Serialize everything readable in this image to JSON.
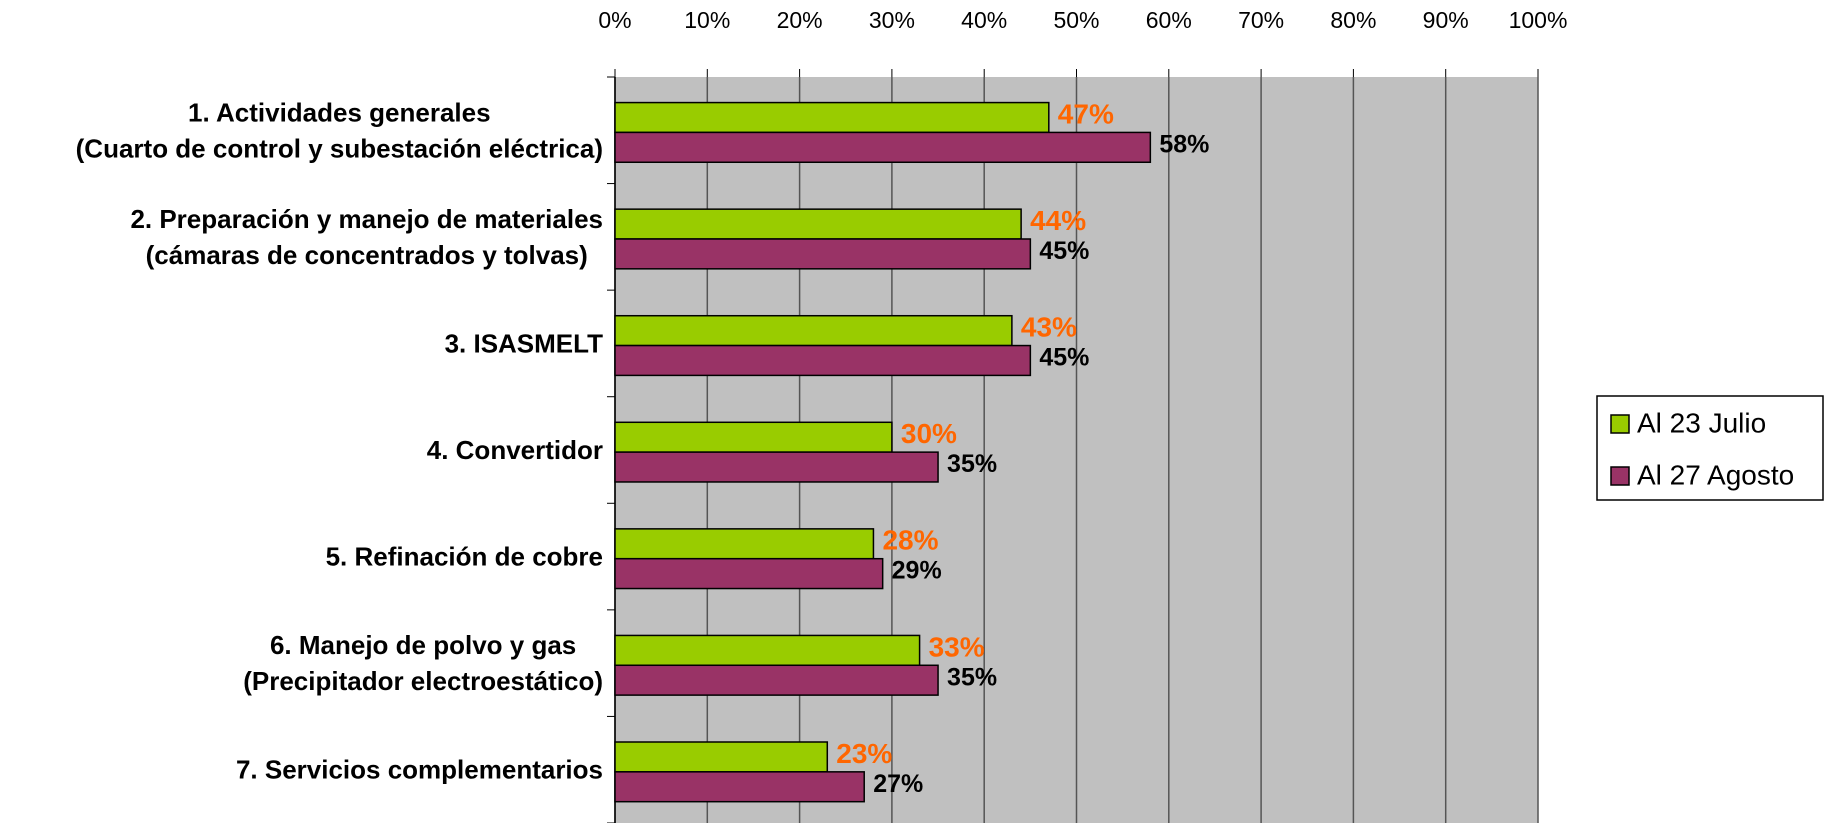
{
  "chart_data": {
    "type": "bar",
    "orientation": "horizontal",
    "categories": [
      [
        "1. Actividades generales",
        "(Cuarto de control y subestación eléctrica)"
      ],
      [
        "2. Preparación y manejo de materiales",
        "(cámaras de concentrados y tolvas)"
      ],
      [
        "3. ISASMELT"
      ],
      [
        "4. Convertidor"
      ],
      [
        "5. Refinación de cobre"
      ],
      [
        "6. Manejo de polvo y gas",
        "(Precipitador electroestático)"
      ],
      [
        "7. Servicios complementarios"
      ]
    ],
    "series": [
      {
        "name": "Al 23 Julio",
        "color": "#99cc00",
        "label_color": "#ff6600",
        "values": [
          47,
          44,
          43,
          30,
          28,
          33,
          23
        ],
        "value_labels": [
          "47%",
          "44%",
          "43%",
          "30%",
          "28%",
          "33%",
          "23%"
        ]
      },
      {
        "name": "Al 27 Agosto",
        "color": "#993366",
        "label_color": "#000000",
        "values": [
          58,
          45,
          45,
          35,
          29,
          35,
          27
        ],
        "value_labels": [
          "58%",
          "45%",
          "45%",
          "35%",
          "29%",
          "35%",
          "27%"
        ]
      }
    ],
    "xlim": [
      0,
      100
    ],
    "xticks": [
      {
        "value": 0,
        "label": "0%"
      },
      {
        "value": 10,
        "label": "10%"
      },
      {
        "value": 20,
        "label": "20%"
      },
      {
        "value": 30,
        "label": "30%"
      },
      {
        "value": 40,
        "label": "40%"
      },
      {
        "value": 50,
        "label": "50%"
      },
      {
        "value": 60,
        "label": "60%"
      },
      {
        "value": 70,
        "label": "70%"
      },
      {
        "value": 80,
        "label": "80%"
      },
      {
        "value": 90,
        "label": "90%"
      },
      {
        "value": 100,
        "label": "100%"
      }
    ],
    "grid": true,
    "legend": "right",
    "plot_background": "#c0c0c0"
  }
}
